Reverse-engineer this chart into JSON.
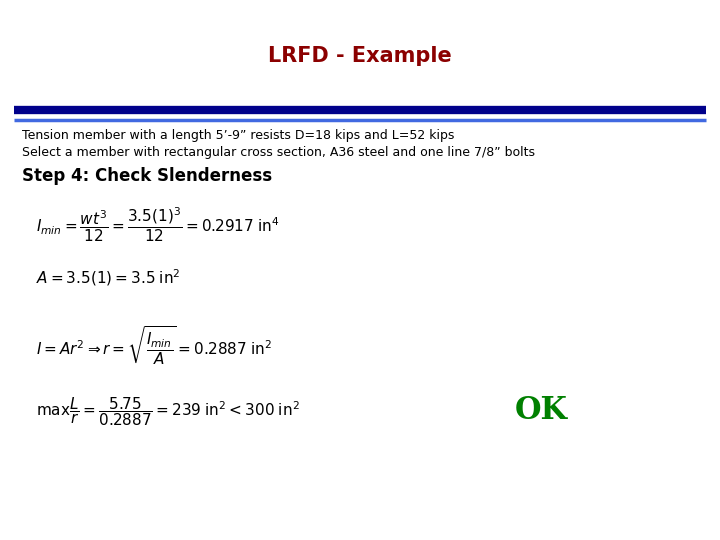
{
  "title": "LRFD - Example",
  "title_color": "#8B0000",
  "title_fontsize": 15,
  "line1_color": "#00008B",
  "line2_color": "#4169E1",
  "bg_color": "#FFFFFF",
  "text_color": "#000000",
  "ok_color": "#008000",
  "body_line1": "Tension member with a length 5’-9” resists D=18 kips and L=52 kips",
  "body_line2": "Select a member with rectangular cross section, A36 steel and one line 7/8” bolts",
  "step_label": "Step 4: Check Slenderness",
  "eq1": "$I_{min} = \\dfrac{wt^3}{12} = \\dfrac{3.5(1)^3}{12} = 0.2917 \\; \\mathrm{in}^4$",
  "eq2": "$A = 3.5(1) = 3.5 \\; \\mathrm{in}^2$",
  "eq3": "$I = Ar^2 \\Rightarrow r = \\sqrt{\\dfrac{I_{min}}{A}} = 0.2887 \\; \\mathrm{in}^2$",
  "eq4": "$\\mathrm{max}\\dfrac{L}{r} = \\dfrac{5.75}{0.2887} = 239 \\; \\mathrm{in}^2 < 300 \\; \\mathrm{in}^2$",
  "ok_text": "OK",
  "body_fontsize": 9,
  "step_fontsize": 12,
  "eq_fontsize": 11,
  "ok_fontsize": 22
}
